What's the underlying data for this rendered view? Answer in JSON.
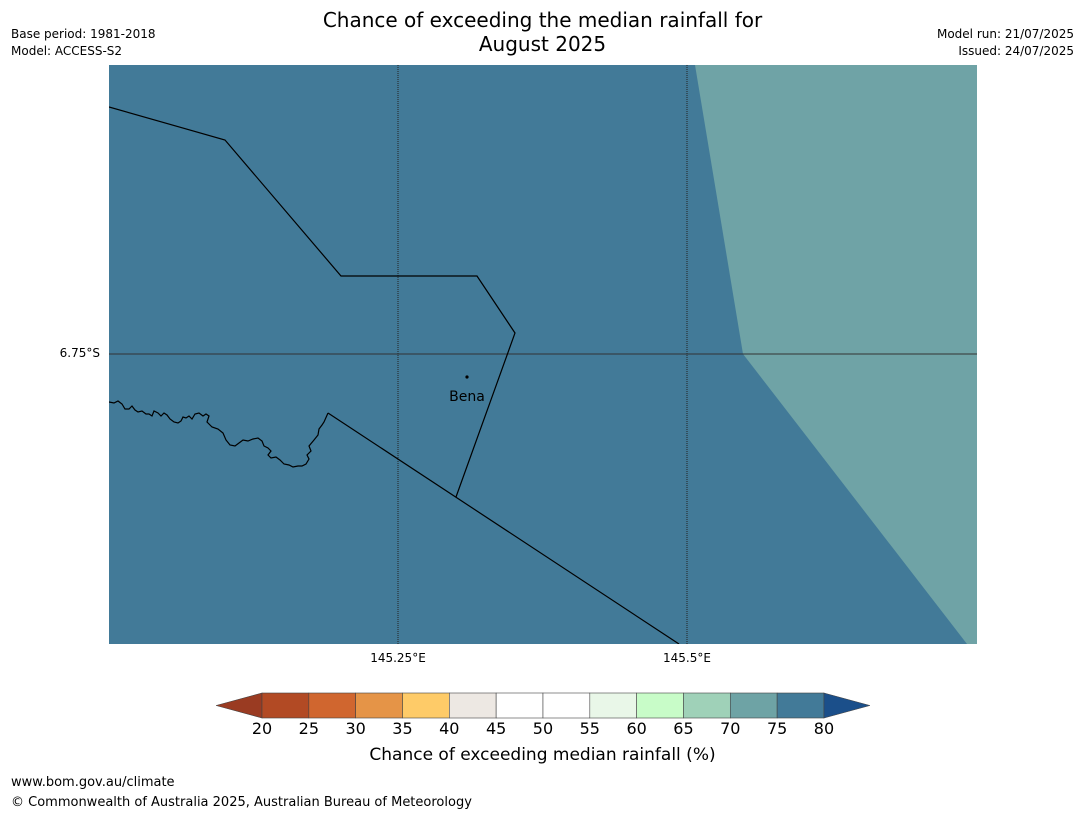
{
  "title_line1": "Chance of exceeding the median rainfall for",
  "title_line2": "August 2025",
  "meta": {
    "base_period": "Base period: 1981-2018",
    "model": "Model: ACCESS-S2",
    "model_run": "Model run: 21/07/2025",
    "issued": "Issued: 24/07/2025"
  },
  "map": {
    "lat_label": "6.75°S",
    "lon_labels": [
      "145.25°E",
      "145.5°E"
    ],
    "place_name": "Bena",
    "dominant_color": "#427a98",
    "secondary_color": "#6fa3a6"
  },
  "colorbar": {
    "label": "Chance of exceeding median rainfall (%)",
    "ticks": [
      "20",
      "25",
      "30",
      "35",
      "40",
      "45",
      "50",
      "55",
      "60",
      "65",
      "70",
      "75",
      "80"
    ],
    "under_color": "#9a3b22",
    "over_color": "#1b4f8a",
    "colors": [
      "#b24a24",
      "#d0662f",
      "#e59447",
      "#fecb68",
      "#ede8e3",
      "#ffffff",
      "#ffffff",
      "#e9f7e8",
      "#c8fcc8",
      "#9fd1b8",
      "#6ea3a5",
      "#427a98"
    ]
  },
  "footer": {
    "url": "www.bom.gov.au/climate",
    "copyright": "© Commonwealth of Australia 2025, Australian Bureau of Meteorology"
  }
}
